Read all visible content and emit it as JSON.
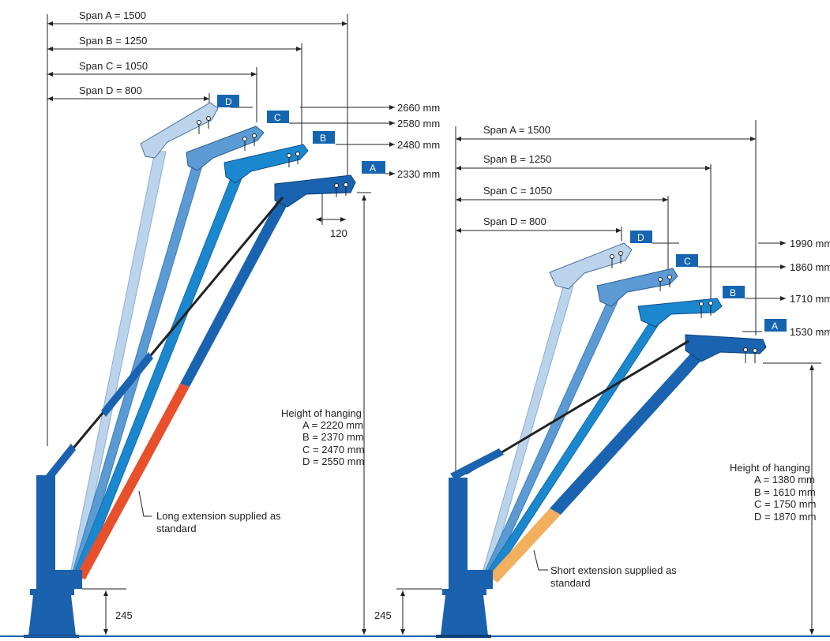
{
  "left": {
    "spans": [
      "Span A = 1500",
      "Span B = 1250",
      "Span C = 1050",
      "Span D = 800"
    ],
    "heights": [
      "2660 mm",
      "2580 mm",
      "2480 mm",
      "2330 mm"
    ],
    "tags": [
      "D",
      "C",
      "B",
      "A"
    ],
    "hook_offset": "120",
    "hanging_title": "Height of hanging",
    "hanging": [
      "A = 2220 mm",
      "B = 2370 mm",
      "C = 2470 mm",
      "D = 2550 mm"
    ],
    "extension": [
      "Long extension supplied as",
      "standard"
    ],
    "base_height": "245",
    "extension_color": "#e8502c"
  },
  "right": {
    "spans": [
      "Span A = 1500",
      "Span B = 1250",
      "Span C = 1050",
      "Span D = 800"
    ],
    "heights": [
      "1990 mm",
      "1860 mm",
      "1710 mm",
      "1530 mm"
    ],
    "tags": [
      "D",
      "C",
      "B",
      "A"
    ],
    "hanging_title": "Height of hanging",
    "hanging": [
      "A = 1380 mm",
      "B = 1610 mm",
      "C = 1750 mm",
      "D = 1870 mm"
    ],
    "extension": [
      "Short extension supplied as",
      "standard"
    ],
    "base_height": "245",
    "extension_color": "#f2b05e"
  },
  "colors": {
    "tag_blue": "#1565b0",
    "boom_a": "#1a63b0",
    "boom_b": "#1b87cf",
    "boom_c": "#5b9ad3",
    "boom_d": "#bcd3ec",
    "post": "#1a62ad"
  }
}
